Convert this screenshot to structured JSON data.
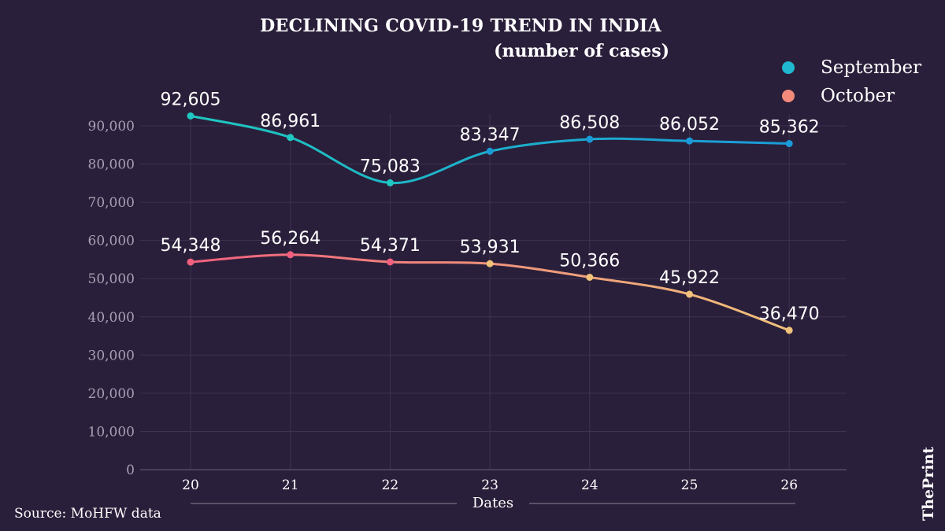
{
  "chart_data": {
    "type": "line",
    "title": "DECLINING COVID-19 TREND IN INDIA",
    "subtitle": "(number of cases)",
    "xlabel": "Dates",
    "ylabel": "",
    "x": [
      "20",
      "21",
      "22",
      "23",
      "24",
      "25",
      "26"
    ],
    "ylim": [
      0,
      90000
    ],
    "yticks": [
      0,
      10000,
      20000,
      30000,
      40000,
      50000,
      60000,
      70000,
      80000,
      90000
    ],
    "ytick_labels": [
      "0",
      "10,000",
      "20,000",
      "30,000",
      "40,000",
      "50,000",
      "60,000",
      "70,000",
      "80,000",
      "90,000"
    ],
    "grid": true,
    "legend_position": "top-right",
    "series": [
      {
        "name": "September",
        "values": [
          92605,
          86961,
          75083,
          83347,
          86508,
          86052,
          85362
        ],
        "labels": [
          "92,605",
          "86,961",
          "75,083",
          "83,347",
          "86,508",
          "86,052",
          "85,362"
        ],
        "colors": [
          "#1fc8c0",
          "#1a9ad8"
        ]
      },
      {
        "name": "October",
        "values": [
          54348,
          56264,
          54371,
          53931,
          50366,
          45922,
          36470
        ],
        "labels": [
          "54,348",
          "56,264",
          "54,371",
          "53,931",
          "50,366",
          "45,922",
          "36,470"
        ],
        "colors": [
          "#f0607e",
          "#f0c27a"
        ]
      }
    ]
  },
  "source": "Source: MoHFW data",
  "logo": "ThePrint"
}
